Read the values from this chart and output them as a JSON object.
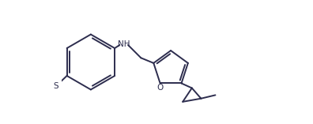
{
  "background_color": "#ffffff",
  "line_color": "#2d2d4e",
  "text_color": "#2d2d4e",
  "figsize": [
    3.96,
    1.57
  ],
  "dpi": 100,
  "NH_label": "NH",
  "S_label": "S",
  "O_label": "O"
}
